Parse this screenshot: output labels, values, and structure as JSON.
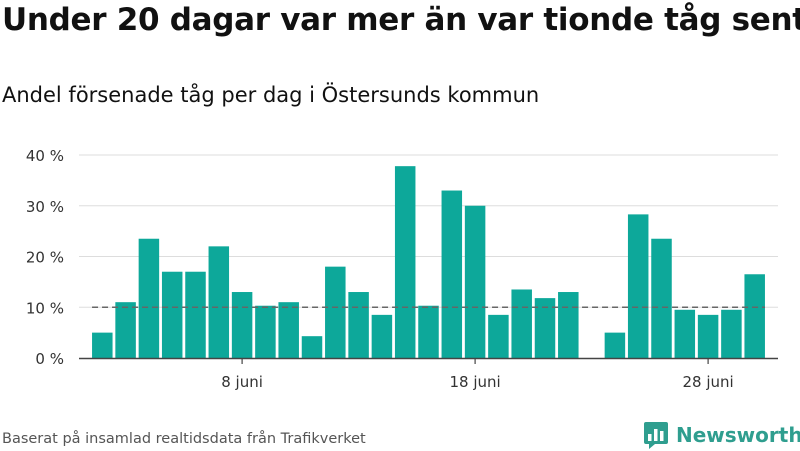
{
  "title": "Under 20 dagar var mer än var tionde tåg sent",
  "subtitle": "Andel försenade tåg per dag i Östersunds kommun",
  "footer": "Baserat på insamlad realtidsdata från Trafikverket",
  "brand": "Newsworthy",
  "colors": {
    "bar": "#0da89a",
    "grid": "#dddddd",
    "axis": "#444444",
    "reference": "#666666",
    "brand": "#2f9e8f"
  },
  "chart_data": {
    "type": "bar",
    "x": [
      2,
      3,
      4,
      5,
      6,
      7,
      8,
      9,
      10,
      11,
      12,
      13,
      14,
      15,
      16,
      17,
      18,
      19,
      20,
      21,
      22,
      24,
      25,
      26,
      27,
      28,
      29,
      30
    ],
    "values": [
      5,
      11,
      23.5,
      17,
      17,
      22,
      13,
      10.3,
      11,
      4.3,
      18,
      13,
      8.5,
      37.8,
      10.3,
      33,
      30,
      8.5,
      13.5,
      11.8,
      13,
      5,
      28.3,
      23.5,
      9.5,
      8.5,
      9.5,
      16.5
    ],
    "unit": "%",
    "ylim": [
      0,
      40
    ],
    "yticks": [
      0,
      10,
      20,
      30,
      40
    ],
    "ytick_labels": [
      "0 %",
      "10 %",
      "20 %",
      "30 %",
      "40 %"
    ],
    "xlim": [
      1,
      31
    ],
    "xticks": [
      8,
      18,
      28
    ],
    "xtick_labels": [
      "8 juni",
      "18 juni",
      "28 juni"
    ],
    "reference_line": 10,
    "grid": true
  }
}
